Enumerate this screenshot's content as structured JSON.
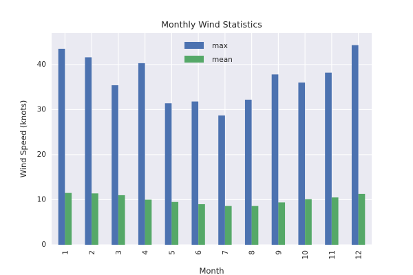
{
  "chart_data": {
    "type": "bar",
    "title": "Monthly Wind Statistics",
    "xlabel": "Month",
    "ylabel": "Wind Speed (knots)",
    "categories": [
      "1",
      "2",
      "3",
      "4",
      "5",
      "6",
      "7",
      "8",
      "9",
      "10",
      "11",
      "12"
    ],
    "series": [
      {
        "name": "max",
        "color": "#4c72b0",
        "values": [
          43.5,
          41.6,
          35.4,
          40.3,
          31.4,
          31.8,
          28.7,
          32.2,
          37.8,
          36.0,
          38.2,
          44.3
        ]
      },
      {
        "name": "mean",
        "color": "#55a868",
        "values": [
          11.5,
          11.4,
          11.0,
          10.0,
          9.5,
          9.0,
          8.6,
          8.6,
          9.4,
          10.1,
          10.5,
          11.3
        ]
      }
    ],
    "ylim": [
      0,
      47
    ],
    "yticks": [
      0,
      10,
      20,
      30,
      40
    ],
    "grid": true,
    "legend_position": "top-center",
    "background_color": "#eaeaf2",
    "grid_color": "#ffffff"
  }
}
